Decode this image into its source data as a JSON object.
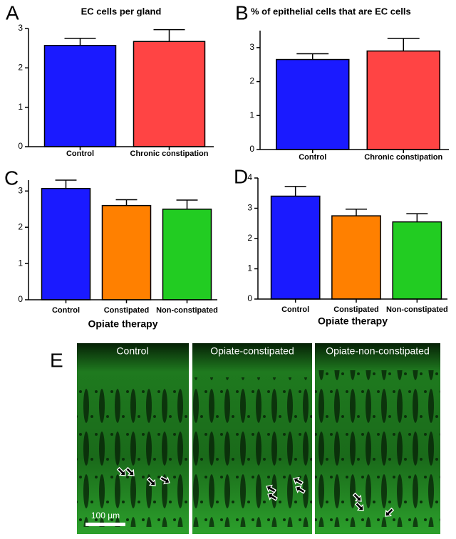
{
  "chart_data": [
    {
      "type": "bar",
      "panel": "A",
      "title": "EC cells per gland",
      "categories": [
        "Control",
        "Chronic constipation"
      ],
      "values": [
        2.57,
        2.67
      ],
      "errors": [
        0.18,
        0.3
      ],
      "colors": [
        "#1a1aff",
        "#ff4444"
      ],
      "ylim": [
        0,
        3
      ],
      "yticks": [
        0,
        1,
        2,
        3
      ]
    },
    {
      "type": "bar",
      "panel": "B",
      "title": "% of epithelial cells that are EC cells",
      "categories": [
        "Control",
        "Chronic constipation"
      ],
      "values": [
        2.65,
        2.9
      ],
      "errors": [
        0.17,
        0.37
      ],
      "colors": [
        "#1a1aff",
        "#ff4444"
      ],
      "ylim": [
        0,
        3.5
      ],
      "yticks": [
        0,
        1,
        2,
        3
      ]
    },
    {
      "type": "bar",
      "panel": "C",
      "xlabel": "Opiate therapy",
      "categories": [
        "Control",
        "Constipated",
        "Non-constipated"
      ],
      "values": [
        3.07,
        2.6,
        2.5
      ],
      "errors": [
        0.23,
        0.16,
        0.25
      ],
      "colors": [
        "#1a1aff",
        "#ff8000",
        "#22cc22"
      ],
      "ylim": [
        0,
        3.3
      ],
      "yticks": [
        0,
        1,
        2,
        3
      ]
    },
    {
      "type": "bar",
      "panel": "D",
      "xlabel": "Opiate therapy",
      "categories": [
        "Control",
        "Constipated",
        "Non-constipated"
      ],
      "values": [
        3.4,
        2.75,
        2.55
      ],
      "errors": [
        0.32,
        0.22,
        0.27
      ],
      "colors": [
        "#1a1aff",
        "#ff8000",
        "#22cc22"
      ],
      "ylim": [
        0,
        4
      ],
      "yticks": [
        0,
        1,
        2,
        3,
        4
      ]
    }
  ],
  "panel_e": {
    "panel": "E",
    "images": [
      "Control",
      "Opiate-constipated",
      "Opiate-non-constipated"
    ],
    "scale_bar": "100 µm"
  }
}
